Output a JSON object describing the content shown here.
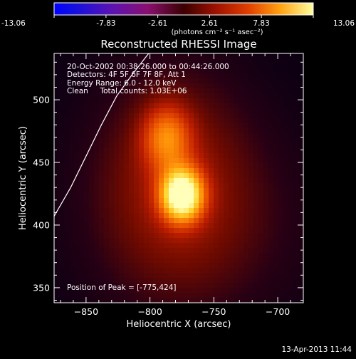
{
  "colorbar": {
    "tick_labels": [
      "-13.06",
      "-7.83",
      "-2.61",
      "2.61",
      "7.83",
      "13.06"
    ],
    "tick_values": [
      -13.06,
      -7.83,
      -2.61,
      2.61,
      7.83,
      13.06
    ],
    "range": [
      -13.06,
      13.06
    ],
    "units": "(photons cm⁻² s⁻¹ asec⁻²)"
  },
  "chart_data": {
    "type": "heatmap",
    "title": "Reconstructed RHESSI Image",
    "xlabel": "Heliocentric X (arcsec)",
    "ylabel": "Heliocentric Y (arcsec)",
    "xlim": [
      -875,
      -680
    ],
    "ylim": [
      338,
      537
    ],
    "x_ticks": [
      -850,
      -800,
      -750,
      -700
    ],
    "y_ticks": [
      350,
      400,
      450,
      500
    ],
    "x_tick_labels": [
      "−850",
      "−800",
      "−750",
      "−700"
    ],
    "y_tick_labels": [
      "350",
      "400",
      "450",
      "500"
    ],
    "peak": [
      -775,
      424
    ],
    "colormap": "red-temperature",
    "sources": [
      {
        "x": -775,
        "y": 424,
        "sx": 11,
        "sy": 14,
        "amp": 13.06
      },
      {
        "x": -787,
        "y": 470,
        "sx": 13,
        "sy": 18,
        "amp": 5.5
      },
      {
        "x": -782,
        "y": 440,
        "sx": 40,
        "sy": 60,
        "amp": 2.6
      },
      {
        "x": -760,
        "y": 400,
        "sx": 60,
        "sy": 55,
        "amp": 1.3
      }
    ],
    "limb_curve": [
      [
        -875,
        407
      ],
      [
        -862,
        430
      ],
      [
        -850,
        455
      ],
      [
        -838,
        480
      ],
      [
        -826,
        503
      ],
      [
        -814,
        520
      ],
      [
        -801,
        537
      ]
    ]
  },
  "annotations": {
    "time_range": "20-Oct-2002 00:38:26.000 to 00:44:26.000",
    "detectors": "Detectors: 4F 5F 6F 7F 8F, Att 1",
    "energy": "Energy Range: 6.0 - 12.0 keV",
    "clean": "Clean     Total counts: 1.03E+06",
    "peak": "Position of Peak = [-775,424]"
  },
  "footer": {
    "date": "13-Apr-2013 11:44"
  }
}
